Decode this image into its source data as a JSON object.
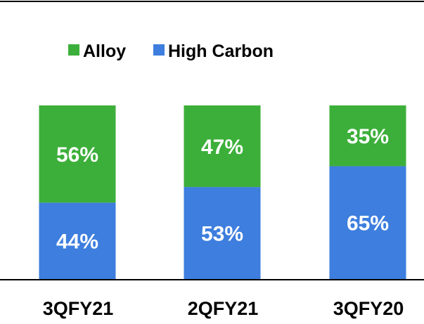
{
  "chart_data": {
    "type": "bar",
    "stacked": true,
    "categories": [
      "3QFY21",
      "2QFY21",
      "3QFY20"
    ],
    "series": [
      {
        "name": "High Carbon",
        "values": [
          44,
          53,
          65
        ],
        "labels": [
          "44%",
          "53%",
          "65%"
        ],
        "color": "#3d7ede"
      },
      {
        "name": "Alloy",
        "values": [
          56,
          47,
          35
        ],
        "labels": [
          "56%",
          "47%",
          "35%"
        ],
        "color": "#3caf3a"
      }
    ],
    "ylim": [
      0,
      100
    ],
    "unit": "%",
    "legend": {
      "position": "top",
      "order": [
        "Alloy",
        "High Carbon"
      ]
    },
    "grid": false,
    "title": "",
    "xlabel": "",
    "ylabel": ""
  }
}
